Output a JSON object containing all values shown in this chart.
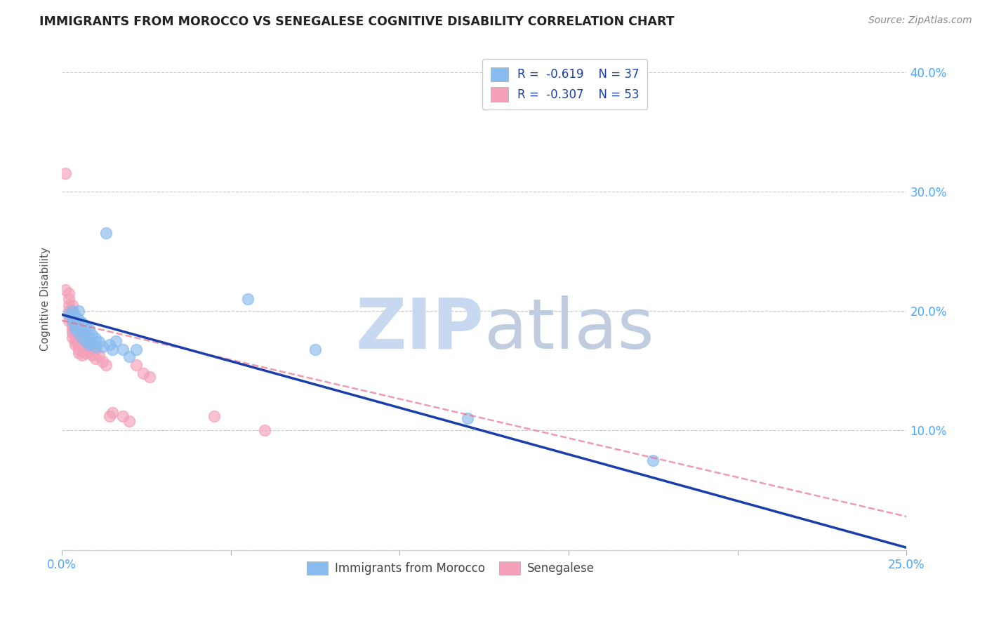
{
  "title": "IMMIGRANTS FROM MOROCCO VS SENEGALESE COGNITIVE DISABILITY CORRELATION CHART",
  "source": "Source: ZipAtlas.com",
  "ylabel": "Cognitive Disability",
  "watermark_zip": "ZIP",
  "watermark_atlas": "atlas",
  "legend_blue_r": "-0.619",
  "legend_blue_n": "37",
  "legend_pink_r": "-0.307",
  "legend_pink_n": "53",
  "legend_label_blue": "Immigrants from Morocco",
  "legend_label_pink": "Senegalese",
  "xlim": [
    0.0,
    0.25
  ],
  "ylim": [
    0.0,
    0.42
  ],
  "xticks": [
    0.0,
    0.05,
    0.1,
    0.15,
    0.2,
    0.25
  ],
  "xtick_labels": [
    "0.0%",
    "",
    "",
    "",
    "",
    "25.0%"
  ],
  "yticks": [
    0.0,
    0.1,
    0.2,
    0.3,
    0.4
  ],
  "ytick_labels_right": [
    "",
    "10.0%",
    "20.0%",
    "30.0%",
    "40.0%"
  ],
  "blue_scatter": [
    [
      0.002,
      0.198
    ],
    [
      0.003,
      0.2
    ],
    [
      0.003,
      0.195
    ],
    [
      0.003,
      0.192
    ],
    [
      0.004,
      0.196
    ],
    [
      0.004,
      0.188
    ],
    [
      0.004,
      0.185
    ],
    [
      0.005,
      0.2
    ],
    [
      0.005,
      0.193
    ],
    [
      0.005,
      0.188
    ],
    [
      0.005,
      0.182
    ],
    [
      0.006,
      0.19
    ],
    [
      0.006,
      0.185
    ],
    [
      0.006,
      0.178
    ],
    [
      0.007,
      0.188
    ],
    [
      0.007,
      0.182
    ],
    [
      0.007,
      0.175
    ],
    [
      0.008,
      0.185
    ],
    [
      0.008,
      0.178
    ],
    [
      0.008,
      0.172
    ],
    [
      0.009,
      0.18
    ],
    [
      0.009,
      0.173
    ],
    [
      0.01,
      0.177
    ],
    [
      0.01,
      0.17
    ],
    [
      0.011,
      0.174
    ],
    [
      0.012,
      0.17
    ],
    [
      0.013,
      0.265
    ],
    [
      0.014,
      0.172
    ],
    [
      0.015,
      0.168
    ],
    [
      0.016,
      0.175
    ],
    [
      0.018,
      0.168
    ],
    [
      0.02,
      0.162
    ],
    [
      0.022,
      0.168
    ],
    [
      0.055,
      0.21
    ],
    [
      0.075,
      0.168
    ],
    [
      0.12,
      0.11
    ],
    [
      0.175,
      0.075
    ]
  ],
  "pink_scatter": [
    [
      0.001,
      0.315
    ],
    [
      0.001,
      0.218
    ],
    [
      0.002,
      0.215
    ],
    [
      0.002,
      0.21
    ],
    [
      0.002,
      0.205
    ],
    [
      0.002,
      0.2
    ],
    [
      0.002,
      0.196
    ],
    [
      0.002,
      0.192
    ],
    [
      0.003,
      0.205
    ],
    [
      0.003,
      0.2
    ],
    [
      0.003,
      0.196
    ],
    [
      0.003,
      0.192
    ],
    [
      0.003,
      0.188
    ],
    [
      0.003,
      0.185
    ],
    [
      0.003,
      0.182
    ],
    [
      0.003,
      0.178
    ],
    [
      0.004,
      0.19
    ],
    [
      0.004,
      0.185
    ],
    [
      0.004,
      0.182
    ],
    [
      0.004,
      0.178
    ],
    [
      0.004,
      0.175
    ],
    [
      0.004,
      0.172
    ],
    [
      0.005,
      0.185
    ],
    [
      0.005,
      0.18
    ],
    [
      0.005,
      0.175
    ],
    [
      0.005,
      0.172
    ],
    [
      0.005,
      0.168
    ],
    [
      0.005,
      0.165
    ],
    [
      0.006,
      0.178
    ],
    [
      0.006,
      0.172
    ],
    [
      0.006,
      0.168
    ],
    [
      0.006,
      0.163
    ],
    [
      0.007,
      0.175
    ],
    [
      0.007,
      0.17
    ],
    [
      0.007,
      0.165
    ],
    [
      0.008,
      0.172
    ],
    [
      0.008,
      0.166
    ],
    [
      0.009,
      0.17
    ],
    [
      0.009,
      0.163
    ],
    [
      0.01,
      0.168
    ],
    [
      0.01,
      0.16
    ],
    [
      0.011,
      0.163
    ],
    [
      0.012,
      0.158
    ],
    [
      0.013,
      0.155
    ],
    [
      0.014,
      0.112
    ],
    [
      0.015,
      0.115
    ],
    [
      0.018,
      0.112
    ],
    [
      0.02,
      0.108
    ],
    [
      0.022,
      0.155
    ],
    [
      0.024,
      0.148
    ],
    [
      0.026,
      0.145
    ],
    [
      0.045,
      0.112
    ],
    [
      0.06,
      0.1
    ]
  ],
  "blue_line_x": [
    0.0,
    0.25
  ],
  "blue_line_y": [
    0.197,
    0.002
  ],
  "pink_line_x": [
    0.0,
    0.25
  ],
  "pink_line_y": [
    0.192,
    0.028
  ],
  "bg_color": "#ffffff",
  "blue_scatter_color": "#88BBEE",
  "pink_scatter_color": "#F4A0B8",
  "blue_line_color": "#1A3FAA",
  "pink_line_color": "#E87090",
  "grid_color": "#C8C8D8",
  "title_color": "#222222",
  "axis_label_color": "#555555",
  "tick_color": "#4da6ff",
  "watermark_color_zip": "#C8D8F0",
  "watermark_color_atlas": "#C0CCDF"
}
